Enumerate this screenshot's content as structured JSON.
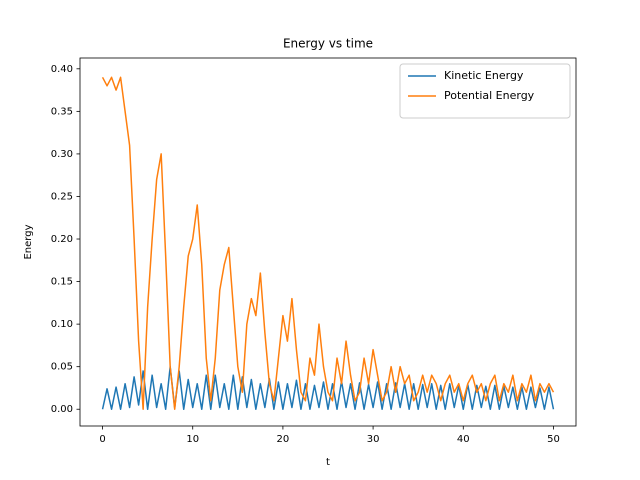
{
  "chart_data": {
    "type": "line",
    "title": "Energy vs time",
    "x_label": "t",
    "y_label": "Energy",
    "x": [
      0,
      0.5,
      1,
      1.5,
      2,
      2.5,
      3,
      3.5,
      4,
      4.5,
      5,
      5.5,
      6,
      6.5,
      7,
      7.5,
      8,
      8.5,
      9,
      9.5,
      10,
      10.5,
      11,
      11.5,
      12,
      12.5,
      13,
      13.5,
      14,
      14.5,
      15,
      15.5,
      16,
      16.5,
      17,
      17.5,
      18,
      18.5,
      19,
      19.5,
      20,
      20.5,
      21,
      21.5,
      22,
      22.5,
      23,
      23.5,
      24,
      24.5,
      25,
      25.5,
      26,
      26.5,
      27,
      27.5,
      28,
      28.5,
      29,
      29.5,
      30,
      30.5,
      31,
      31.5,
      32,
      32.5,
      33,
      33.5,
      34,
      34.5,
      35,
      35.5,
      36,
      36.5,
      37,
      37.5,
      38,
      38.5,
      39,
      39.5,
      40,
      40.5,
      41,
      41.5,
      42,
      42.5,
      43,
      43.5,
      44,
      44.5,
      45,
      45.5,
      46,
      46.5,
      47,
      47.5,
      48,
      48.5,
      49,
      49.5,
      50
    ],
    "series": [
      {
        "name": "Kinetic Energy",
        "color": "#1f77b4",
        "values": [
          0.0,
          0.024,
          0.0,
          0.026,
          0.0,
          0.03,
          0.002,
          0.038,
          0.005,
          0.045,
          0.0,
          0.04,
          0.002,
          0.03,
          0.0,
          0.05,
          0.002,
          0.045,
          0.0,
          0.035,
          0.002,
          0.03,
          0.0,
          0.04,
          0.0,
          0.04,
          0.002,
          0.03,
          0.0,
          0.04,
          0.0,
          0.038,
          0.002,
          0.035,
          0.0,
          0.03,
          0.002,
          0.036,
          0.0,
          0.032,
          0.0,
          0.03,
          0.002,
          0.034,
          0.0,
          0.03,
          0.0,
          0.028,
          0.002,
          0.032,
          0.0,
          0.03,
          0.0,
          0.033,
          0.002,
          0.03,
          0.0,
          0.031,
          0.0,
          0.029,
          0.002,
          0.032,
          0.0,
          0.03,
          0.0,
          0.031,
          0.002,
          0.03,
          0.0,
          0.03,
          0.0,
          0.029,
          0.002,
          0.03,
          0.0,
          0.028,
          0.0,
          0.03,
          0.002,
          0.028,
          0.0,
          0.029,
          0.0,
          0.028,
          0.002,
          0.027,
          0.0,
          0.028,
          0.0,
          0.027,
          0.002,
          0.026,
          0.0,
          0.026,
          0.0,
          0.026,
          0.002,
          0.025,
          0.0,
          0.026,
          0.0
        ]
      },
      {
        "name": "Potential Energy",
        "color": "#ff7f0e",
        "values": [
          0.39,
          0.38,
          0.39,
          0.375,
          0.39,
          0.35,
          0.31,
          0.2,
          0.08,
          0.0,
          0.12,
          0.2,
          0.27,
          0.3,
          0.18,
          0.05,
          0.0,
          0.05,
          0.12,
          0.18,
          0.2,
          0.24,
          0.17,
          0.06,
          0.01,
          0.06,
          0.14,
          0.17,
          0.19,
          0.12,
          0.05,
          0.02,
          0.1,
          0.13,
          0.11,
          0.16,
          0.09,
          0.03,
          0.01,
          0.06,
          0.11,
          0.08,
          0.13,
          0.07,
          0.02,
          0.01,
          0.06,
          0.04,
          0.1,
          0.05,
          0.02,
          0.01,
          0.06,
          0.03,
          0.08,
          0.04,
          0.01,
          0.02,
          0.06,
          0.03,
          0.07,
          0.04,
          0.01,
          0.02,
          0.05,
          0.02,
          0.05,
          0.03,
          0.04,
          0.01,
          0.02,
          0.04,
          0.02,
          0.04,
          0.03,
          0.01,
          0.03,
          0.04,
          0.02,
          0.03,
          0.01,
          0.03,
          0.04,
          0.02,
          0.03,
          0.01,
          0.03,
          0.04,
          0.01,
          0.03,
          0.02,
          0.04,
          0.01,
          0.03,
          0.02,
          0.04,
          0.01,
          0.03,
          0.02,
          0.03,
          0.02
        ]
      }
    ],
    "xlim": [
      -2.5,
      52.5
    ],
    "ylim": [
      -0.0197,
      0.4127
    ],
    "xticks": [
      0,
      10,
      20,
      30,
      40,
      50
    ],
    "yticks": [
      {
        "value": 0,
        "label": "0.00"
      },
      0.05,
      {
        "value": 0.1,
        "label": "0.10"
      },
      0.15,
      {
        "value": 0.2,
        "label": "0.20"
      },
      0.25,
      {
        "value": 0.3,
        "label": "0.30"
      },
      0.35,
      {
        "value": 0.4,
        "label": "0.40"
      }
    ],
    "legend": "upper right"
  }
}
